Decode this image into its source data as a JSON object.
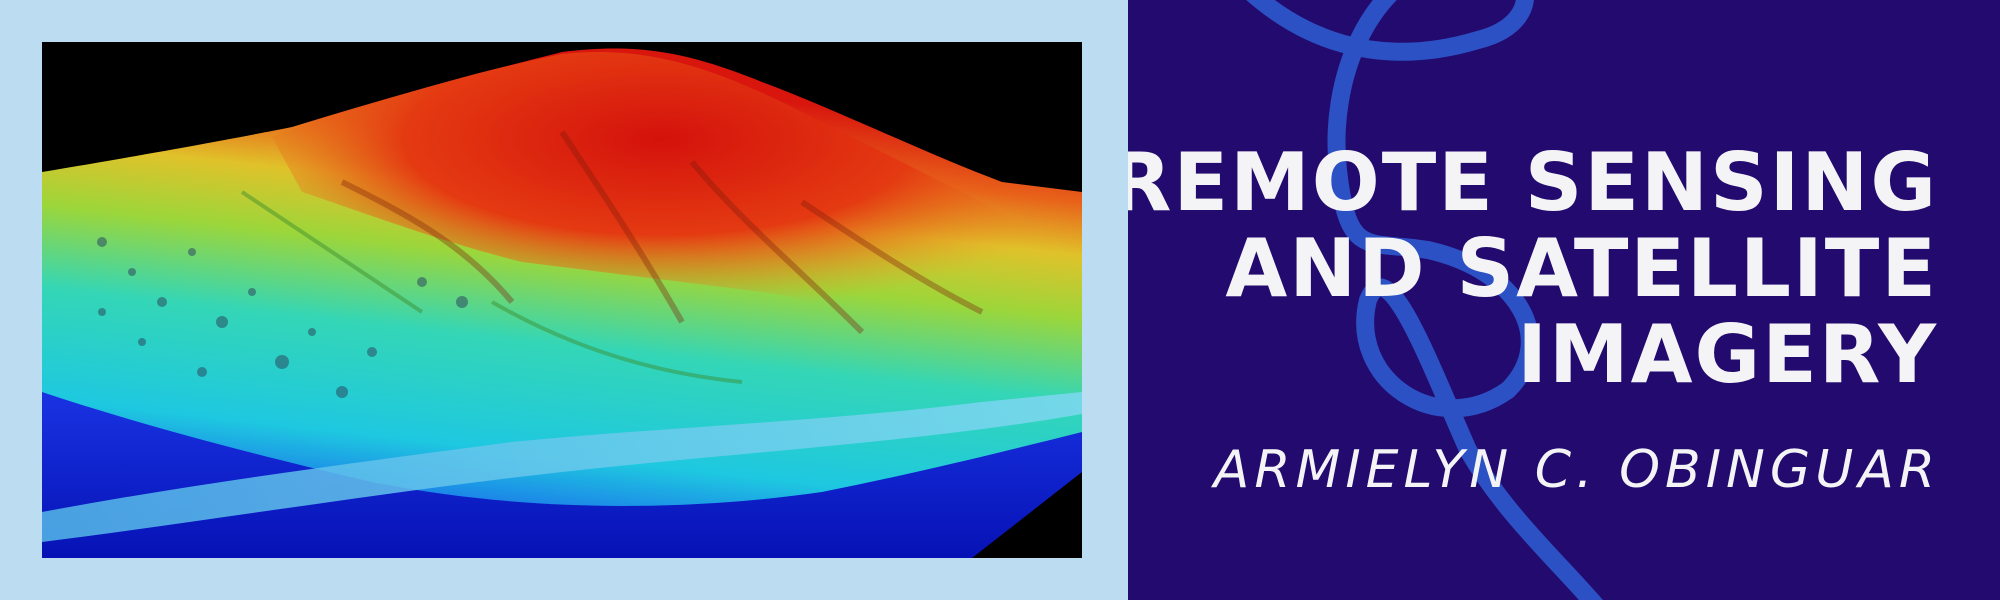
{
  "image": {
    "subject": "terrain-elevation-map-icon"
  },
  "title": {
    "line1": "REMOTE  SENSING",
    "line2": "AND SATELLITE",
    "line3": "IMAGERY"
  },
  "author": "ARMIELYN C. OBINGUAR",
  "colors": {
    "frame": "#bcdcf2",
    "panel": "#230a6e",
    "swirl": "#2d55c8",
    "text": "#f4f4f6"
  }
}
